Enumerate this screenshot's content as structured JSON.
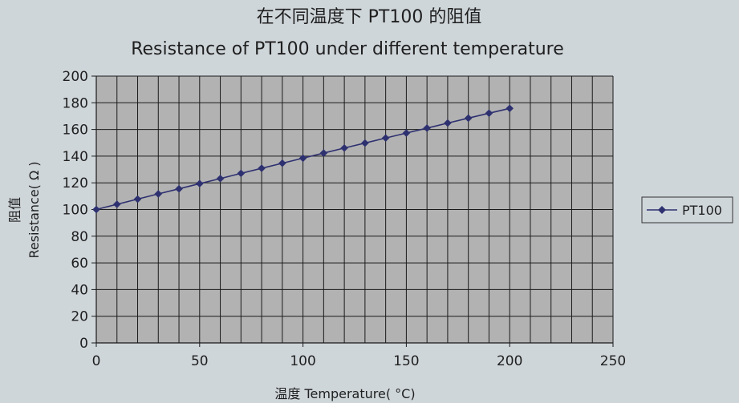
{
  "chart_data": {
    "type": "line",
    "title": "在不同温度下 PT100 的阻值",
    "subtitle": "Resistance of PT100 under different temperature",
    "xlabel": "温度 Temperature( °C)",
    "ylabel_cn": "阻值",
    "ylabel_en": "Resistance( Ω )",
    "xlim": [
      0,
      250
    ],
    "ylim": [
      0,
      200
    ],
    "x_ticks": [
      "0",
      "50",
      "100",
      "150",
      "200",
      "250"
    ],
    "y_ticks": [
      "0",
      "20",
      "40",
      "60",
      "80",
      "100",
      "120",
      "140",
      "160",
      "180",
      "200"
    ],
    "grid": true,
    "legend_position": "right",
    "series": [
      {
        "name": "PT100",
        "color": "#2e3170",
        "marker": "diamond",
        "x": [
          0,
          10,
          20,
          30,
          40,
          50,
          60,
          70,
          80,
          90,
          100,
          110,
          120,
          130,
          140,
          150,
          160,
          170,
          180,
          190,
          200
        ],
        "y": [
          100,
          103.9,
          107.8,
          111.7,
          115.5,
          119.4,
          123.2,
          127.1,
          130.9,
          134.7,
          138.5,
          142.3,
          146.1,
          149.8,
          153.6,
          157.3,
          161.0,
          164.8,
          168.5,
          172.2,
          175.8
        ]
      }
    ]
  }
}
